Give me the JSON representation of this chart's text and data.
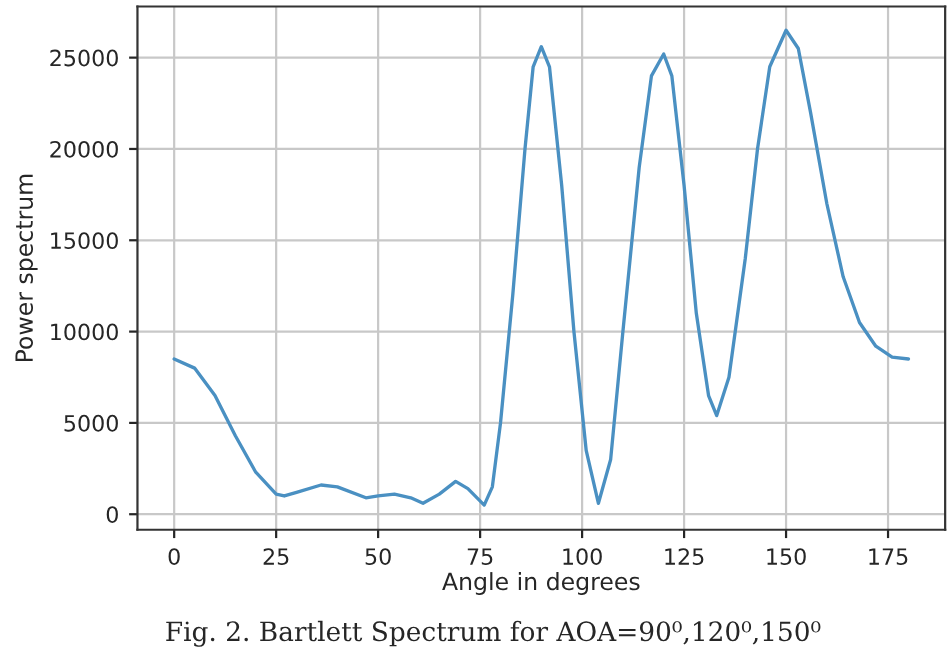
{
  "chart_data": {
    "type": "line",
    "xlabel": "Angle in degrees",
    "ylabel": "Power spectrum",
    "annotations": [
      "Fig. 2. Bartlett Spectrum for AOA=90⁰,120⁰,150⁰"
    ],
    "xlim": [
      -9,
      189
    ],
    "ylim": [
      -850,
      27800
    ],
    "xticks": [
      0,
      25,
      50,
      75,
      100,
      125,
      150,
      175
    ],
    "yticks": [
      0,
      5000,
      10000,
      15000,
      20000,
      25000
    ],
    "grid": true,
    "x": [
      0,
      5,
      10,
      15,
      20,
      25,
      27,
      30,
      36,
      40,
      47,
      50,
      54,
      58,
      61,
      65,
      69,
      72,
      76,
      78,
      80,
      83,
      86,
      88,
      90,
      92,
      95,
      98,
      101,
      104,
      107,
      110,
      114,
      117,
      120,
      122,
      125,
      128,
      131,
      133,
      136,
      140,
      143,
      146,
      150,
      153,
      156,
      160,
      164,
      168,
      172,
      176,
      180
    ],
    "series": [
      {
        "color": "#4a90c2",
        "values": [
          8500,
          8000,
          6500,
          4300,
          2300,
          1100,
          1000,
          1200,
          1600,
          1500,
          900,
          1000,
          1100,
          900,
          600,
          1100,
          1800,
          1400,
          500,
          1500,
          5000,
          12000,
          20000,
          24500,
          25600,
          24500,
          18000,
          10000,
          3500,
          600,
          3000,
          10000,
          19000,
          24000,
          25200,
          24000,
          18000,
          11000,
          6500,
          5400,
          7500,
          14000,
          20000,
          24500,
          26500,
          25500,
          22000,
          17000,
          13000,
          10500,
          9200,
          8600,
          8500
        ]
      }
    ]
  }
}
